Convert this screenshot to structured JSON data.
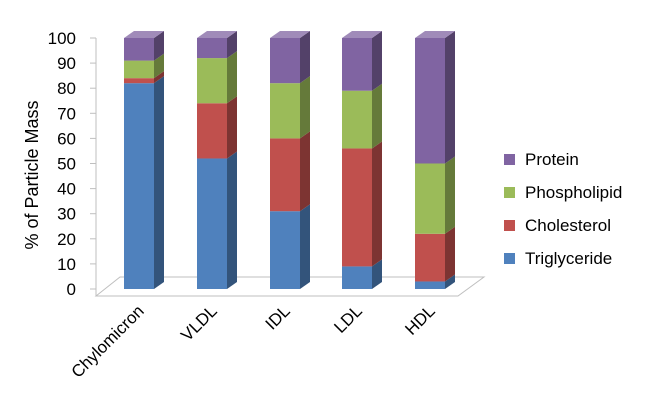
{
  "chart_data": {
    "type": "bar",
    "stacked": true,
    "three_d": true,
    "title": "",
    "xlabel": "",
    "ylabel": "% of Particle Mass",
    "ylim": [
      0,
      100
    ],
    "yticks": [
      "0",
      "10",
      "20",
      "30",
      "40",
      "50",
      "60",
      "70",
      "80",
      "90",
      "100"
    ],
    "categories": [
      "Chylomicron",
      "VLDL",
      "IDL",
      "LDL",
      "HDL"
    ],
    "series": [
      {
        "name": "Triglyceride",
        "values": [
          82,
          52,
          31,
          9,
          3
        ]
      },
      {
        "name": "Cholesterol",
        "values": [
          2,
          22,
          29,
          47,
          19
        ]
      },
      {
        "name": "Phospholipid",
        "values": [
          7,
          18,
          22,
          23,
          28
        ]
      },
      {
        "name": "Protein",
        "values": [
          9,
          8,
          18,
          21,
          50
        ]
      }
    ],
    "legend_position": "right",
    "legend_order": [
      "Protein",
      "Phospholipid",
      "Cholesterol",
      "Triglyceride"
    ],
    "grid": false,
    "colors": {
      "Triglyceride": "#4f81bd",
      "Cholesterol": "#c0504d",
      "Phospholipid": "#9bbb59",
      "Protein": "#8064a2"
    }
  }
}
